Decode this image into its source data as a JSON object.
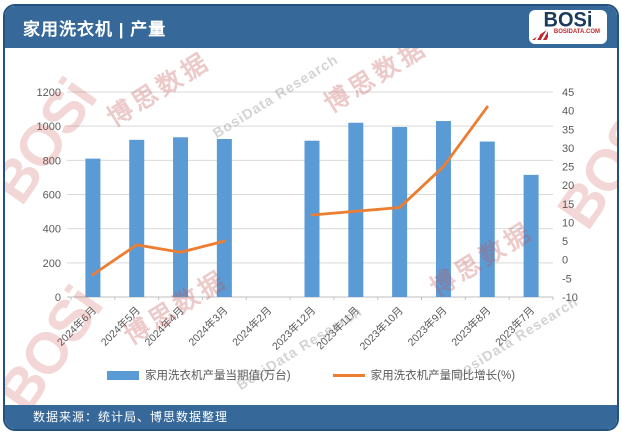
{
  "header": {
    "title": "家用洗衣机 | 产量",
    "logo": {
      "text": "BOSi",
      "subtext": "BOSIDATA.COM"
    }
  },
  "footer": {
    "source": "数据来源：统计局、博思数据整理"
  },
  "watermark": {
    "brand": "BOSi",
    "cn": "博思数据",
    "en": "BosiData Research"
  },
  "colors": {
    "header_bg": "#36689A",
    "footer_bg": "#36689A",
    "card_border": "#24527F",
    "bar": "#5B9BD5",
    "line": "#ED7D31",
    "grid": "#D9D9D9",
    "axis_line": "#BFBFBF",
    "axis_text": "#595959",
    "logo_red": "#C0282D",
    "logo_navy": "#1B3A5C"
  },
  "chart_data": {
    "type": "bar+line",
    "title": "家用洗衣机 | 产量",
    "categories": [
      "2024年6月",
      "2024年5月",
      "2024年4月",
      "2024年3月",
      "2024年2月",
      "2023年12月",
      "2023年11月",
      "2023年10月",
      "2023年9月",
      "2023年8月",
      "2023年7月"
    ],
    "series": [
      {
        "name": "家用洗衣机产量当期值(万台)",
        "type": "bar",
        "axis": "left",
        "values": [
          810,
          920,
          935,
          925,
          null,
          915,
          1020,
          995,
          1030,
          910,
          715
        ]
      },
      {
        "name": "家用洗衣机产量同比增长(%)",
        "type": "line",
        "axis": "right",
        "values": [
          -4,
          4,
          2,
          5,
          null,
          12,
          13,
          14,
          25,
          41,
          null
        ]
      }
    ],
    "left_axis": {
      "min": 0,
      "max": 1200,
      "step": 200
    },
    "right_axis": {
      "min": -10,
      "max": 45,
      "step": 5
    },
    "xlabel": "",
    "ylabel": "",
    "legend_position": "bottom",
    "grid": true
  }
}
